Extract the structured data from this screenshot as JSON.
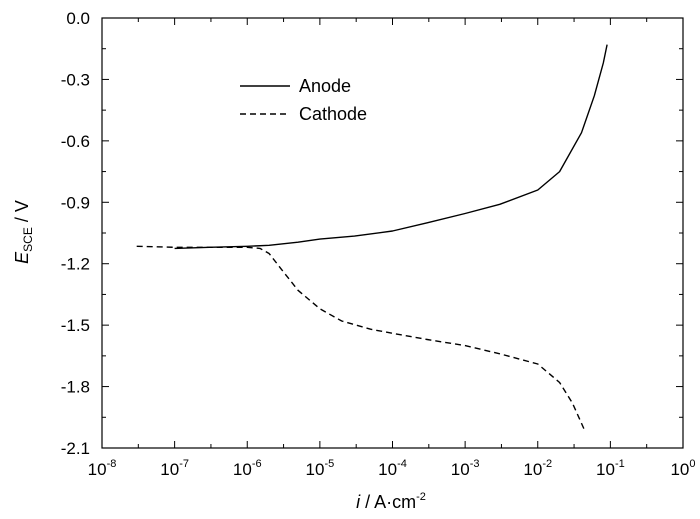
{
  "chart_data": {
    "type": "line",
    "x_scale": "log",
    "xlim": [
      1e-08,
      1
    ],
    "ylim": [
      -2.1,
      0.0
    ],
    "x_tick_exponents": [
      "-8",
      "-7",
      "-6",
      "-5",
      "-4",
      "-3",
      "-2",
      "-1",
      "0"
    ],
    "x_tick_base": "10",
    "y_ticks": [
      "0.0",
      "-0.3",
      "-0.6",
      "-0.9",
      "-1.2",
      "-1.5",
      "-1.8",
      "-2.1"
    ],
    "xlabel": {
      "var": "i",
      "unit": " / A·cm",
      "exp": "-2"
    },
    "ylabel": {
      "var": "E",
      "sub": "SCE",
      "unit": " / V"
    },
    "legend_position": "upper-center",
    "series": [
      {
        "name": "Anode",
        "style": "solid",
        "x": [
          1e-07,
          3e-07,
          1e-06,
          2e-06,
          5e-06,
          1e-05,
          3e-05,
          0.0001,
          0.0003,
          0.001,
          0.003,
          0.01,
          0.02,
          0.04,
          0.06,
          0.08,
          0.09
        ],
        "y": [
          -1.125,
          -1.12,
          -1.115,
          -1.11,
          -1.095,
          -1.08,
          -1.065,
          -1.04,
          -1.0,
          -0.955,
          -0.91,
          -0.84,
          -0.75,
          -0.56,
          -0.38,
          -0.22,
          -0.13
        ]
      },
      {
        "name": "Cathode",
        "style": "dashed",
        "x": [
          3e-08,
          1e-07,
          3e-07,
          1e-06,
          1.5e-06,
          2e-06,
          3e-06,
          5e-06,
          1e-05,
          2e-05,
          5e-05,
          0.0001,
          0.0003,
          0.001,
          0.003,
          0.01,
          0.02,
          0.03,
          0.045
        ],
        "y": [
          -1.115,
          -1.12,
          -1.12,
          -1.12,
          -1.125,
          -1.15,
          -1.23,
          -1.33,
          -1.42,
          -1.48,
          -1.52,
          -1.54,
          -1.57,
          -1.6,
          -1.64,
          -1.69,
          -1.78,
          -1.88,
          -2.02
        ]
      }
    ]
  }
}
